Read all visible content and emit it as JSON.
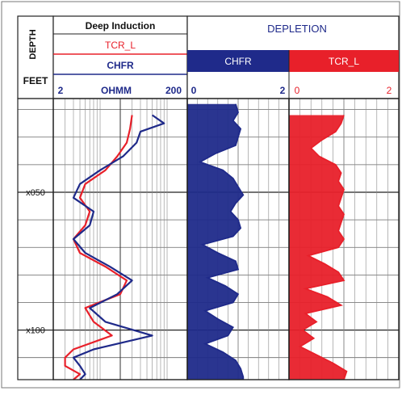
{
  "chart_data": {
    "type": "line",
    "title": "",
    "header": {
      "depth_label": "DEPTH",
      "depth_units": "FEET",
      "track1_title": "Deep Induction",
      "track1_curve_a": "TCR_L",
      "track1_curve_b": "CHFR",
      "track1_scale_min": "2",
      "track1_scale_unit": "OHMM",
      "track1_scale_max": "200",
      "depletion_title": "DEPLETION",
      "track2_curve": "CHFR",
      "track2_scale_min": "0",
      "track2_scale_max": "2",
      "track3_curve": "TCR_L",
      "track3_scale_min": "0",
      "track3_scale_max": "2"
    },
    "depth_axis": {
      "tick_labels": [
        "x050",
        "x100"
      ],
      "tick_values": [
        50,
        100
      ],
      "range": [
        16,
        118
      ],
      "direction": "down"
    },
    "tracks": [
      {
        "name": "resistivity",
        "scale": "log",
        "range": [
          2,
          200
        ],
        "series": [
          {
            "name": "TCR_L",
            "color": "#e8202a",
            "depth": [
              22,
              27,
              32,
              37,
              42,
              47,
              52,
              57,
              62,
              67,
              72,
              77,
              82,
              87,
              92,
              97,
              102,
              107,
              110,
              113,
              116,
              118
            ],
            "values": [
              30,
              28,
              25,
              18,
              12,
              6,
              5,
              7,
              6,
              4,
              5,
              12,
              25,
              20,
              6,
              8,
              15,
              4,
              3,
              3,
              5,
              4
            ]
          },
          {
            "name": "CHFR",
            "color": "#1f2a8a",
            "depth": [
              22,
              25,
              28,
              32,
              37,
              42,
              47,
              52,
              57,
              62,
              67,
              72,
              77,
              82,
              87,
              92,
              97,
              102,
              107,
              110,
              113,
              116,
              118
            ],
            "values": [
              60,
              90,
              40,
              35,
              22,
              10,
              5,
              4,
              8,
              7,
              4,
              6,
              14,
              30,
              18,
              7,
              12,
              60,
              8,
              4,
              5,
              6,
              5
            ]
          }
        ]
      },
      {
        "name": "depletion_chfr",
        "range": [
          0,
          2
        ],
        "fill_to": "left",
        "series": [
          {
            "name": "CHFR",
            "color": "#1f2a8a",
            "depth": [
              18,
              21,
              24,
              27,
              30,
              33,
              36,
              39,
              42,
              45,
              48,
              51,
              54,
              57,
              60,
              63,
              66,
              69,
              72,
              75,
              78,
              81,
              84,
              87,
              90,
              93,
              96,
              99,
              102,
              105,
              108,
              111,
              114,
              117,
              118
            ],
            "values": [
              0.95,
              1.0,
              0.9,
              1.05,
              1.0,
              0.95,
              0.55,
              0.25,
              0.7,
              0.9,
              1.0,
              1.1,
              0.95,
              0.85,
              1.0,
              1.05,
              0.9,
              0.3,
              0.6,
              0.95,
              1.0,
              0.4,
              0.75,
              1.0,
              0.9,
              0.35,
              0.6,
              0.9,
              0.8,
              0.35,
              0.7,
              0.95,
              1.05,
              1.1,
              1.1
            ]
          }
        ]
      },
      {
        "name": "depletion_tcr_l",
        "range": [
          0,
          2
        ],
        "fill_to": "left",
        "series": [
          {
            "name": "TCR_L",
            "color": "#e8202a",
            "depth": [
              22,
              25,
              28,
              31,
              34,
              37,
              40,
              43,
              46,
              49,
              52,
              55,
              58,
              61,
              64,
              67,
              70,
              73,
              76,
              79,
              82,
              85,
              88,
              91,
              94,
              97,
              100,
              103,
              106,
              109,
              112,
              115,
              118
            ],
            "values": [
              1.0,
              0.95,
              0.85,
              0.6,
              0.4,
              0.55,
              0.85,
              0.95,
              0.9,
              1.0,
              0.95,
              0.9,
              1.0,
              0.95,
              0.9,
              1.0,
              0.9,
              0.35,
              0.65,
              0.9,
              1.0,
              0.3,
              0.7,
              0.95,
              0.3,
              0.5,
              0.25,
              0.45,
              0.2,
              0.5,
              0.8,
              1.05,
              1.0
            ]
          }
        ]
      }
    ],
    "grid": true
  }
}
